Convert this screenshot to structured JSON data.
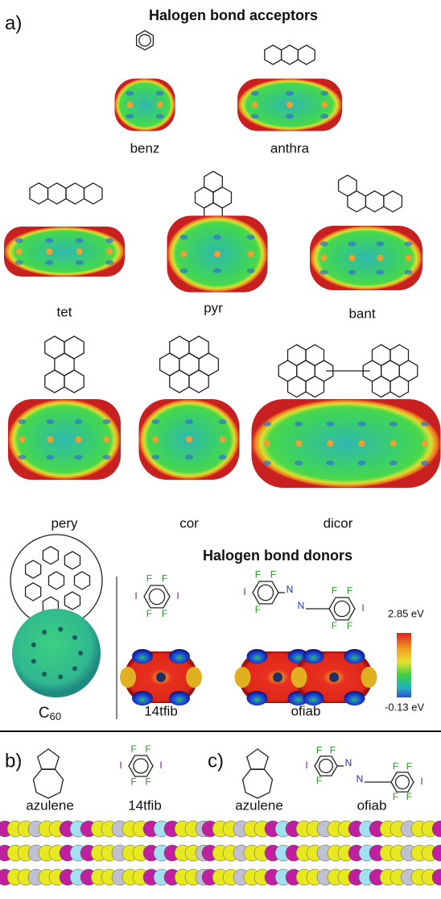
{
  "panels": {
    "a": "a)",
    "b": "b)",
    "c": "c)"
  },
  "acceptors_title": "Halogen bond acceptors",
  "donors_title": "Halogen bond donors",
  "molecules": {
    "benz": "benz",
    "anthra": "anthra",
    "tet": "tet",
    "pyr": "pyr",
    "bant": "bant",
    "pery": "pery",
    "cor": "cor",
    "dicor": "dicor",
    "c60": {
      "base": "C",
      "subscript": "60"
    },
    "tfib": "14tfib",
    "ofiab": "ofiab"
  },
  "colorbar": {
    "max": "2.85 eV",
    "min": "-0.13 eV"
  },
  "atoms": {
    "F": "F",
    "I": "I",
    "N": "N"
  },
  "panel_b": {
    "labels": [
      "azulene",
      "14tfib"
    ]
  },
  "panel_c": {
    "labels": [
      "azulene",
      "ofiab"
    ]
  }
}
